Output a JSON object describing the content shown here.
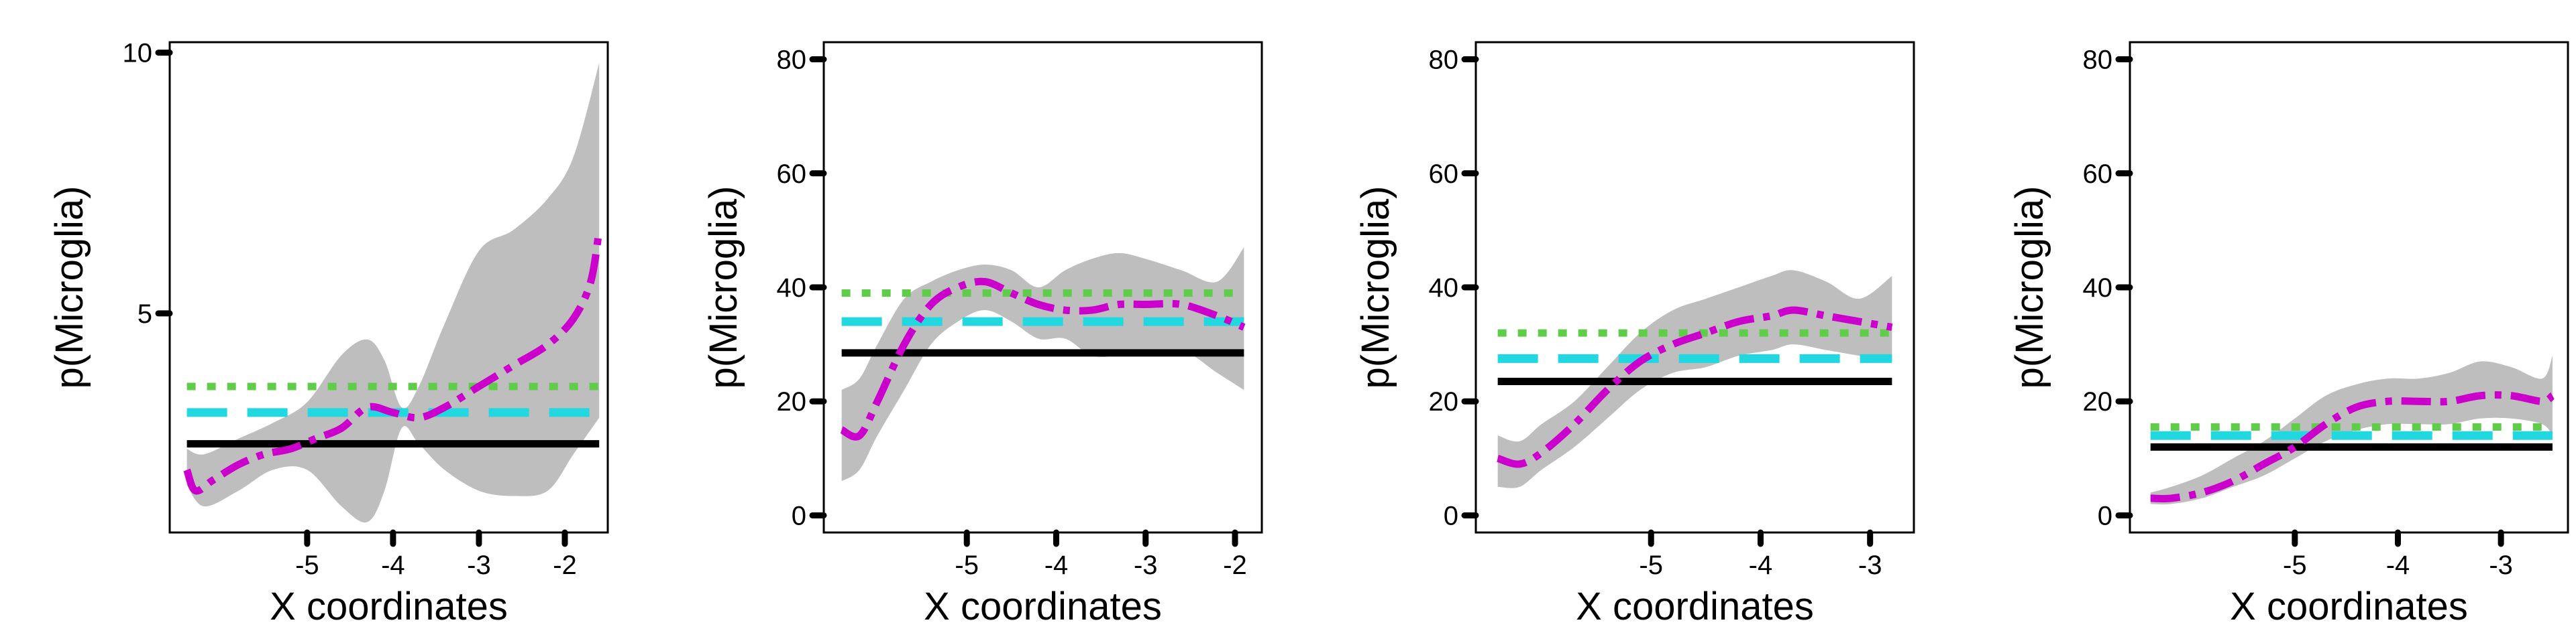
{
  "figure": {
    "background": "#ffffff",
    "colors": {
      "ribbon": "#bebebe",
      "observed": "#cc00cc",
      "black_line": "#000000",
      "cyan_line": "#22d8e0",
      "green_line": "#5fcc4a"
    }
  },
  "chart_data": [
    {
      "type": "line",
      "title": "",
      "xlabel": "X coordinates",
      "ylabel": "p(Microglia)",
      "xlim": [
        -6.6,
        -1.5
      ],
      "ylim": [
        0.8,
        10.2
      ],
      "xticks": [
        -5,
        -4,
        -3,
        -2
      ],
      "xtick_labels": [
        "-5",
        "-4",
        "-3",
        "-2"
      ],
      "yticks": [
        5,
        10
      ],
      "ytick_labels": [
        "5",
        "10"
      ],
      "grid": false,
      "ribbon": {
        "x": [
          -6.4,
          -6.2,
          -5.8,
          -5.4,
          -5.0,
          -4.6,
          -4.3,
          -4.1,
          -3.9,
          -3.7,
          -3.4,
          -3.0,
          -2.6,
          -2.2,
          -1.9,
          -1.6
        ],
        "upper": [
          2.4,
          2.3,
          2.6,
          2.9,
          3.3,
          4.2,
          4.5,
          4.1,
          3.2,
          3.6,
          4.8,
          6.2,
          6.6,
          7.2,
          8.0,
          9.8
        ],
        "lower": [
          1.7,
          1.3,
          1.6,
          2.0,
          2.0,
          1.3,
          1.0,
          1.6,
          2.8,
          2.5,
          2.0,
          1.6,
          1.5,
          1.6,
          2.3,
          3.0
        ]
      },
      "series": [
        {
          "color": "#cc00cc",
          "style": "dashdot",
          "x": [
            -6.4,
            -6.3,
            -6.1,
            -5.8,
            -5.5,
            -5.2,
            -4.9,
            -4.6,
            -4.3,
            -4.0,
            -3.7,
            -3.4,
            -3.0,
            -2.6,
            -2.2,
            -1.9,
            -1.7,
            -1.6
          ],
          "y": [
            2.0,
            1.6,
            1.8,
            2.1,
            2.3,
            2.4,
            2.6,
            2.8,
            3.2,
            3.1,
            3.0,
            3.2,
            3.6,
            4.0,
            4.4,
            4.9,
            5.6,
            6.6
          ]
        },
        {
          "color": "#000000",
          "style": "solid",
          "x": [
            -6.4,
            -1.6
          ],
          "y": [
            2.5,
            2.5
          ]
        },
        {
          "color": "#22d8e0",
          "style": "longdash",
          "x": [
            -6.4,
            -1.6
          ],
          "y": [
            3.1,
            3.1
          ]
        },
        {
          "color": "#5fcc4a",
          "style": "dotted",
          "x": [
            -6.4,
            -1.6
          ],
          "y": [
            3.6,
            3.6
          ]
        }
      ]
    },
    {
      "type": "line",
      "title": "",
      "xlabel": "X coordinates",
      "ylabel": "p(Microglia)",
      "xlim": [
        -6.6,
        -1.7
      ],
      "ylim": [
        -3,
        83
      ],
      "xticks": [
        -5,
        -4,
        -3,
        -2
      ],
      "xtick_labels": [
        "-5",
        "-4",
        "-3",
        "-2"
      ],
      "yticks": [
        0,
        20,
        40,
        60,
        80
      ],
      "ytick_labels": [
        "0",
        "20",
        "40",
        "60",
        "80"
      ],
      "grid": false,
      "ribbon": {
        "x": [
          -6.4,
          -6.2,
          -6.0,
          -5.7,
          -5.4,
          -5.1,
          -4.8,
          -4.5,
          -4.2,
          -3.9,
          -3.6,
          -3.3,
          -3.0,
          -2.6,
          -2.2,
          -1.9
        ],
        "upper": [
          22,
          24,
          30,
          38,
          41,
          43,
          44,
          43,
          40,
          43,
          45,
          46,
          45,
          43,
          41,
          47
        ],
        "lower": [
          6,
          8,
          14,
          22,
          30,
          34,
          36,
          34,
          31,
          31,
          28,
          28,
          28,
          29,
          25,
          22
        ]
      },
      "series": [
        {
          "color": "#cc00cc",
          "style": "dashdot",
          "x": [
            -6.4,
            -6.2,
            -6.0,
            -5.7,
            -5.4,
            -5.1,
            -4.8,
            -4.5,
            -4.2,
            -3.9,
            -3.6,
            -3.3,
            -3.0,
            -2.6,
            -2.2,
            -1.9
          ],
          "y": [
            15,
            14,
            20,
            30,
            37,
            40,
            41,
            39,
            37,
            36,
            36,
            37,
            37,
            37,
            35,
            33
          ]
        },
        {
          "color": "#000000",
          "style": "solid",
          "x": [
            -6.4,
            -1.9
          ],
          "y": [
            28.5,
            28.5
          ]
        },
        {
          "color": "#22d8e0",
          "style": "longdash",
          "x": [
            -6.4,
            -1.9
          ],
          "y": [
            34,
            34
          ]
        },
        {
          "color": "#5fcc4a",
          "style": "dotted",
          "x": [
            -6.4,
            -1.9
          ],
          "y": [
            39,
            39
          ]
        }
      ]
    },
    {
      "type": "line",
      "title": "",
      "xlabel": "X coordinates",
      "ylabel": "p(Microglia)",
      "xlim": [
        -6.6,
        -2.6
      ],
      "ylim": [
        -3,
        83
      ],
      "xticks": [
        -5,
        -4,
        -3
      ],
      "xtick_labels": [
        "-5",
        "-4",
        "-3"
      ],
      "yticks": [
        0,
        20,
        40,
        60,
        80
      ],
      "ytick_labels": [
        "0",
        "20",
        "40",
        "60",
        "80"
      ],
      "grid": false,
      "ribbon": {
        "x": [
          -6.4,
          -6.2,
          -6.0,
          -5.7,
          -5.4,
          -5.1,
          -4.8,
          -4.5,
          -4.2,
          -3.9,
          -3.7,
          -3.4,
          -3.1,
          -2.8
        ],
        "upper": [
          14,
          13,
          16,
          20,
          26,
          32,
          36,
          38,
          40,
          42,
          43,
          41,
          38,
          42
        ],
        "lower": [
          5,
          5,
          8,
          12,
          17,
          22,
          25,
          26,
          28,
          29,
          30,
          29,
          28,
          27
        ]
      },
      "series": [
        {
          "color": "#cc00cc",
          "style": "dashdot",
          "x": [
            -6.4,
            -6.2,
            -6.0,
            -5.7,
            -5.4,
            -5.1,
            -4.8,
            -4.5,
            -4.2,
            -3.9,
            -3.7,
            -3.4,
            -3.1,
            -2.8
          ],
          "y": [
            10,
            9,
            11,
            16,
            22,
            27,
            30,
            32,
            34,
            35,
            36,
            35,
            34,
            33
          ]
        },
        {
          "color": "#000000",
          "style": "solid",
          "x": [
            -6.4,
            -2.8
          ],
          "y": [
            23.5,
            23.5
          ]
        },
        {
          "color": "#22d8e0",
          "style": "longdash",
          "x": [
            -6.4,
            -2.8
          ],
          "y": [
            27.5,
            27.5
          ]
        },
        {
          "color": "#5fcc4a",
          "style": "dotted",
          "x": [
            -6.4,
            -2.8
          ],
          "y": [
            32,
            32
          ]
        }
      ]
    },
    {
      "type": "line",
      "title": "",
      "xlabel": "X coordinates",
      "ylabel": "p(Microglia)",
      "xlim": [
        -6.6,
        -2.35
      ],
      "ylim": [
        -3,
        83
      ],
      "xticks": [
        -5,
        -4,
        -3
      ],
      "xtick_labels": [
        "-5",
        "-4",
        "-3"
      ],
      "yticks": [
        0,
        20,
        40,
        60,
        80
      ],
      "ytick_labels": [
        "0",
        "20",
        "40",
        "60",
        "80"
      ],
      "grid": false,
      "ribbon": {
        "x": [
          -6.4,
          -6.2,
          -5.9,
          -5.6,
          -5.3,
          -5.0,
          -4.7,
          -4.4,
          -4.1,
          -3.8,
          -3.5,
          -3.2,
          -2.9,
          -2.6,
          -2.5
        ],
        "upper": [
          4,
          5,
          7,
          10,
          13,
          17,
          21,
          23,
          24,
          24,
          25,
          27,
          26,
          24,
          28
        ],
        "lower": [
          2,
          2,
          3,
          5,
          7,
          10,
          13,
          15,
          16,
          16,
          16,
          17,
          17,
          16,
          14
        ]
      },
      "series": [
        {
          "color": "#cc00cc",
          "style": "dashdot",
          "x": [
            -6.4,
            -6.2,
            -5.9,
            -5.6,
            -5.3,
            -5.0,
            -4.7,
            -4.4,
            -4.1,
            -3.8,
            -3.5,
            -3.2,
            -2.9,
            -2.6,
            -2.5
          ],
          "y": [
            3,
            3,
            4,
            6,
            9,
            12,
            16,
            19,
            20,
            20,
            20,
            21,
            21,
            20,
            21
          ]
        },
        {
          "color": "#000000",
          "style": "solid",
          "x": [
            -6.4,
            -2.5
          ],
          "y": [
            12,
            12
          ]
        },
        {
          "color": "#22d8e0",
          "style": "longdash",
          "x": [
            -6.4,
            -2.5
          ],
          "y": [
            14,
            14
          ]
        },
        {
          "color": "#5fcc4a",
          "style": "dotted",
          "x": [
            -6.4,
            -2.5
          ],
          "y": [
            15.5,
            15.5
          ]
        }
      ]
    }
  ]
}
